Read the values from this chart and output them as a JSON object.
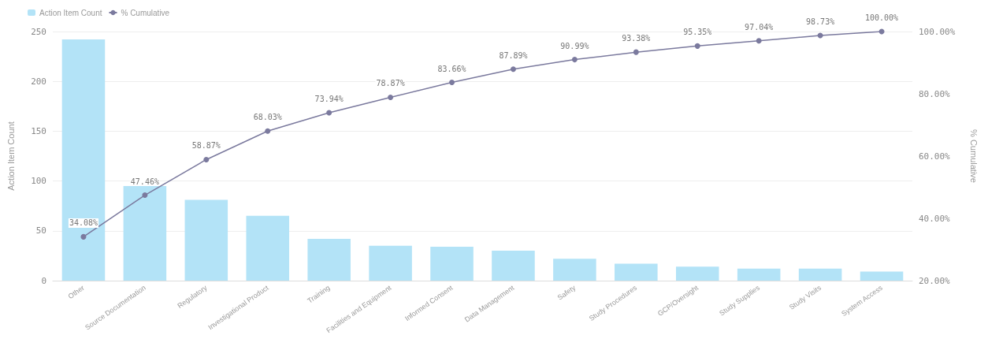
{
  "chart_data": {
    "type": "bar",
    "categories": [
      "Other",
      "Source Documentation",
      "Regulatory",
      "Investigational Product",
      "Training",
      "Facilities and Equipment",
      "Informed Consent",
      "Data Management",
      "Safety",
      "Study Procedures",
      "GCP/Oversight",
      "Study Supplies",
      "Study Visits",
      "System Access"
    ],
    "series": [
      {
        "name": "Action Item Count",
        "color": "#b3e3f7",
        "values": [
          242,
          95,
          81,
          65,
          42,
          35,
          34,
          30,
          22,
          17,
          14,
          12,
          12,
          9
        ]
      },
      {
        "name": "% Cumulative",
        "type": "line",
        "axis": "y2",
        "color": "#7b7a9e",
        "marker": "circle",
        "values": [
          34.08,
          47.46,
          58.87,
          68.03,
          73.94,
          78.87,
          83.66,
          87.89,
          90.99,
          93.38,
          95.35,
          97.04,
          98.73,
          100.0
        ],
        "value_labels": [
          "34.08%",
          "47.46%",
          "58.87%",
          "68.03%",
          "73.94%",
          "78.87%",
          "83.66%",
          "87.89%",
          "90.99%",
          "93.38%",
          "95.35%",
          "97.04%",
          "98.73%",
          "100.00%"
        ]
      }
    ],
    "ylabel": "Action Item Count",
    "y2label": "% Cumulative",
    "ylim": [
      0,
      250
    ],
    "yticks": [
      0,
      50,
      100,
      150,
      200,
      250
    ],
    "y2lim": [
      20,
      100
    ],
    "y2ticks": [
      {
        "value": 20,
        "label": "20.00%"
      },
      {
        "value": 40,
        "label": "40.00%"
      },
      {
        "value": 60,
        "label": "60.00%"
      },
      {
        "value": 80,
        "label": "80.00%"
      },
      {
        "value": 100,
        "label": "100.00%"
      }
    ],
    "grid": "y",
    "legend": "top left"
  }
}
